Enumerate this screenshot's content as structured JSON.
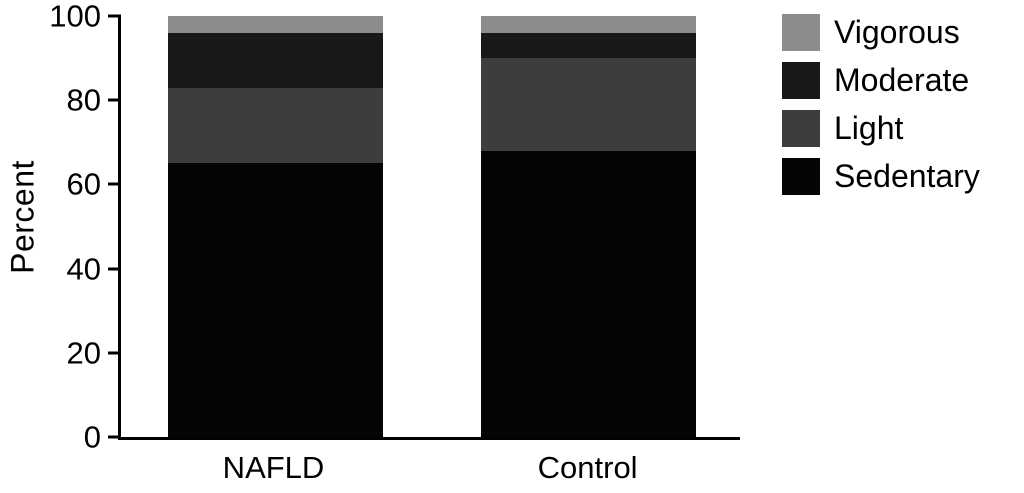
{
  "chart_data": {
    "type": "bar",
    "stacked": true,
    "title": "",
    "xlabel": "",
    "ylabel": "Percent",
    "ylim": [
      0,
      100
    ],
    "yticks": [
      0,
      20,
      40,
      60,
      80,
      100
    ],
    "grid": false,
    "legend_position": "right",
    "categories": [
      "NAFLD",
      "Control"
    ],
    "bar_centers_pct": [
      25,
      75.5
    ],
    "series": [
      {
        "name": "Sedentary",
        "color": "#050505",
        "values": [
          65,
          68
        ]
      },
      {
        "name": "Light",
        "color": "#3d3d3d",
        "values": [
          18,
          22
        ]
      },
      {
        "name": "Moderate",
        "color": "#181818",
        "values": [
          13,
          6
        ]
      },
      {
        "name": "Vigorous",
        "color": "#8c8c8c",
        "values": [
          4,
          4
        ]
      }
    ],
    "legend_order": [
      "Vigorous",
      "Moderate",
      "Light",
      "Sedentary"
    ]
  }
}
